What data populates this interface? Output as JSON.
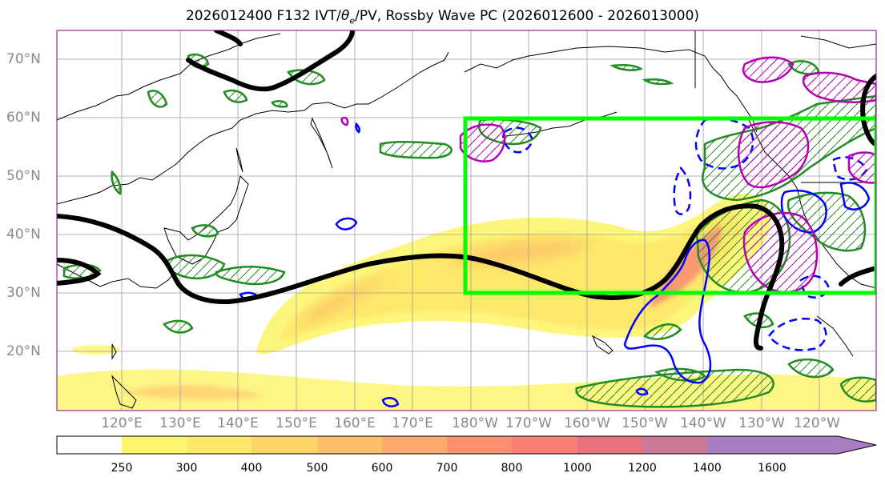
{
  "title": "2026012400 F132 IVT/θe/PV, Rossby Wave PC (2026012600 - 2026013000)",
  "title_parts": {
    "prefix": "2026012400 F132 IVT/",
    "theta": "θ",
    "sub_e": "e",
    "suffix": "/PV, Rossby Wave PC (2026012600 - 2026013000)"
  },
  "lat_labels": [
    "70°N",
    "60°N",
    "50°N",
    "40°N",
    "30°N",
    "20°N"
  ],
  "lon_labels": [
    "120°E",
    "130°E",
    "140°E",
    "150°E",
    "160°E",
    "170°E",
    "180°W",
    "170°W",
    "160°W",
    "150°W",
    "140°W",
    "130°W",
    "120°W"
  ],
  "colorbar": {
    "ticks": [
      "250",
      "300",
      "400",
      "500",
      "600",
      "700",
      "800",
      "1000",
      "1200",
      "1400",
      "1600"
    ],
    "colors": [
      "#ffffff",
      "#fdf56e",
      "#fde869",
      "#fdd468",
      "#fdc06a",
      "#fdaa6c",
      "#fb9070",
      "#f77f76",
      "#e8727e",
      "#c97a96",
      "#a87cc0"
    ]
  },
  "colors": {
    "ivt_fill": "#fdc06a",
    "pc_box": "#00ff00",
    "trough_line": "#000000",
    "pv_contour": "#228b22",
    "theta_contour_pos": "#0000ff",
    "anomaly_contour": "#b400b4",
    "grid": "#9e9e9e"
  }
}
